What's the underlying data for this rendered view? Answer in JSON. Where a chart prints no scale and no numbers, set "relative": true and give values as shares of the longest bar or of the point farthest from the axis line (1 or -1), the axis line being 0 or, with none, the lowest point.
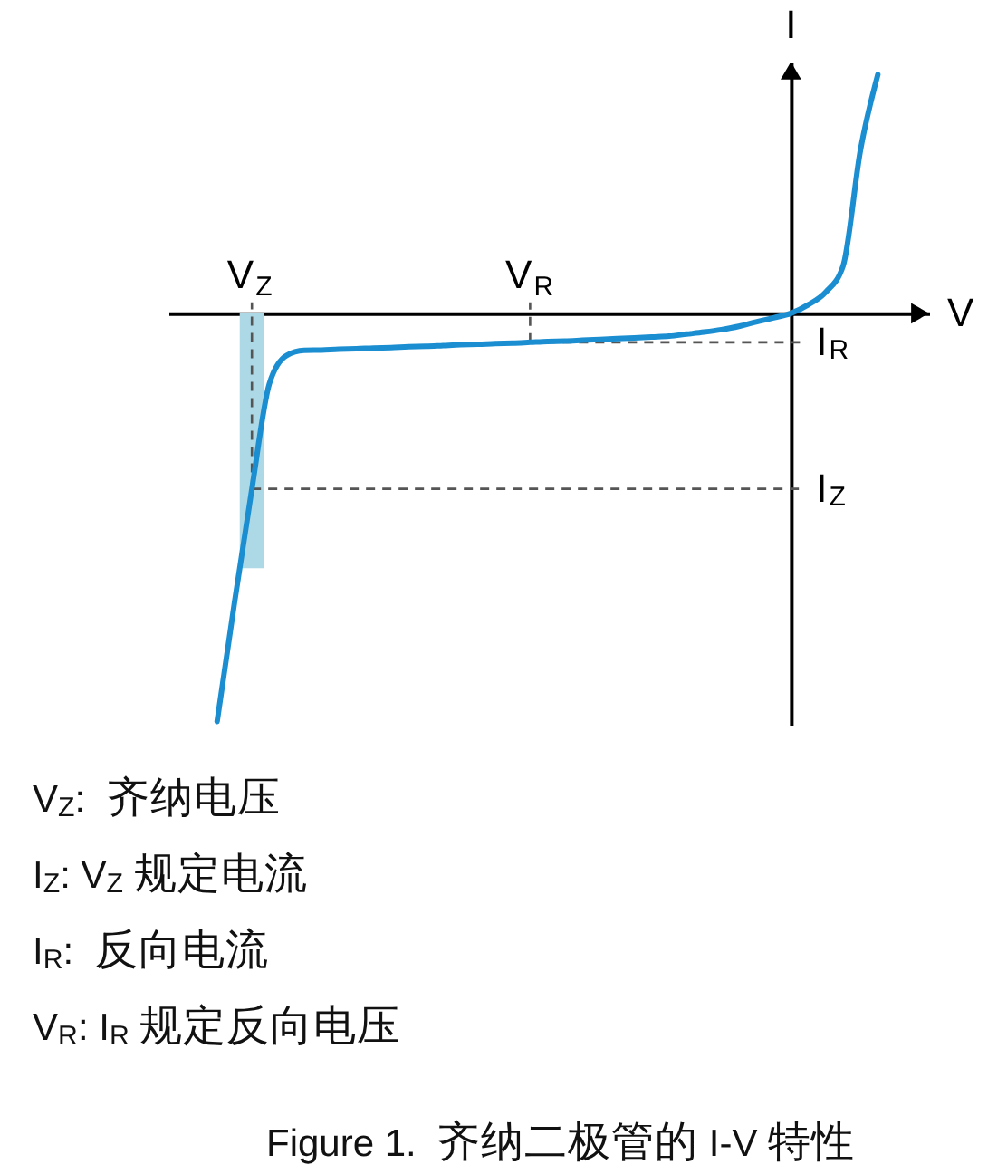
{
  "chart_data": {
    "type": "line",
    "relative": true,
    "title": "Figure 1.  齐纳二极管的 I-V 特性",
    "xlabel": "V",
    "ylabel": "I",
    "categories": [
      null,
      null,
      "V$_{Z}$",
      null,
      null,
      null,
      null,
      null,
      null,
      null,
      null,
      null,
      null,
      null,
      null,
      null,
      null,
      null,
      "V$_{R}$",
      null,
      null,
      null,
      null,
      null,
      null,
      null,
      null,
      null,
      null,
      null,
      null,
      null,
      null,
      null,
      null,
      null,
      null,
      null,
      null
    ],
    "values": [
      -1,
      -0.708,
      -0.43,
      -0.173,
      -0.103,
      -0.091,
      -0.09,
      -0.088,
      -0.087,
      -0.085,
      -0.084,
      -0.082,
      -0.081,
      -0.079,
      -0.077,
      -0.076,
      -0.074,
      -0.073,
      -0.071,
      -0.069,
      -0.068,
      -0.066,
      -0.064,
      -0.062,
      -0.06,
      -0.058,
      -0.056,
      -0.051,
      -0.046,
      -0.04,
      -0.032,
      -0.021,
      -0.011,
      0,
      0.021,
      0.052,
      0.116,
      0.4,
      0.585
    ],
    "color": "#1b8ed1",
    "ref_lines": [
      {
        "axis": "x",
        "value": "V$_{Z}$",
        "line_style": "dashed"
      },
      {
        "axis": "y",
        "value": -0.071,
        "label": "I$_{R}$",
        "line_style": "dashed"
      },
      {
        "axis": "y",
        "value": -0.43,
        "label": "I$_{Z}$",
        "line_style": "dashed"
      }
    ],
    "annotations": [
      "V$_{Z}$:  齐纳电压",
      "I$_{Z}$: V$_{Z}$ 规定电流",
      "I$_{R}$:  反向电流",
      "V$_{R}$: I$_{R}$ 规定反向电压"
    ]
  }
}
